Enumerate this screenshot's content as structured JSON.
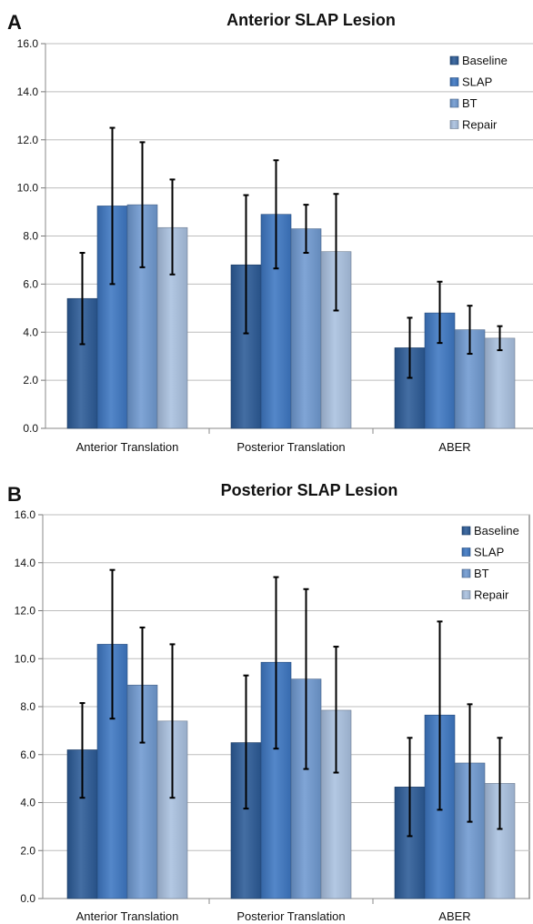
{
  "colors": {
    "Baseline": "#2b5a96",
    "SLAP": "#3d77c2",
    "BT": "#6f99d0",
    "Repair": "#a9c0df"
  },
  "chart_data": [
    {
      "type": "bar",
      "panel_label": "A",
      "title": "Anterior SLAP Lesion",
      "xlabel": "",
      "ylabel": "",
      "ylim": [
        0,
        16
      ],
      "yticks": [
        "0.0",
        "2.0",
        "4.0",
        "6.0",
        "8.0",
        "10.0",
        "12.0",
        "14.0",
        "16.0"
      ],
      "grid": true,
      "legend_position": "top-right",
      "categories": [
        "Anterior Translation",
        "Posterior Translation",
        "ABER"
      ],
      "series": [
        {
          "name": "Baseline",
          "values": [
            5.4,
            6.8,
            3.35
          ],
          "error": [
            [
              3.5,
              7.3
            ],
            [
              3.95,
              9.7
            ],
            [
              2.1,
              4.6
            ]
          ]
        },
        {
          "name": "SLAP",
          "values": [
            9.25,
            8.9,
            4.8
          ],
          "error": [
            [
              6.0,
              12.5
            ],
            [
              6.65,
              11.15
            ],
            [
              3.55,
              6.1
            ]
          ]
        },
        {
          "name": "BT",
          "values": [
            9.3,
            8.3,
            4.1
          ],
          "error": [
            [
              6.7,
              11.9
            ],
            [
              7.3,
              9.3
            ],
            [
              3.1,
              5.1
            ]
          ]
        },
        {
          "name": "Repair",
          "values": [
            8.35,
            7.35,
            3.75
          ],
          "error": [
            [
              6.4,
              10.35
            ],
            [
              4.9,
              9.75
            ],
            [
              3.25,
              4.25
            ]
          ]
        }
      ]
    },
    {
      "type": "bar",
      "panel_label": "B",
      "title": "Posterior SLAP Lesion",
      "xlabel": "",
      "ylabel": "",
      "ylim": [
        0,
        16
      ],
      "yticks": [
        "0.0",
        "2.0",
        "4.0",
        "6.0",
        "8.0",
        "10.0",
        "12.0",
        "14.0",
        "16.0"
      ],
      "grid": true,
      "legend_position": "top-right",
      "categories": [
        "Anterior Translation",
        "Posterior Translation",
        "ABER"
      ],
      "series": [
        {
          "name": "Baseline",
          "values": [
            6.2,
            6.5,
            4.65
          ],
          "error": [
            [
              4.2,
              8.15
            ],
            [
              3.75,
              9.3
            ],
            [
              2.6,
              6.7
            ]
          ]
        },
        {
          "name": "SLAP",
          "values": [
            10.6,
            9.85,
            7.65
          ],
          "error": [
            [
              7.5,
              13.7
            ],
            [
              6.25,
              13.4
            ],
            [
              3.7,
              11.55
            ]
          ]
        },
        {
          "name": "BT",
          "values": [
            8.9,
            9.15,
            5.65
          ],
          "error": [
            [
              6.5,
              11.3
            ],
            [
              5.4,
              12.9
            ],
            [
              3.2,
              8.1
            ]
          ]
        },
        {
          "name": "Repair",
          "values": [
            7.4,
            7.85,
            4.8
          ],
          "error": [
            [
              4.2,
              10.6
            ],
            [
              5.25,
              10.5
            ],
            [
              2.9,
              6.7
            ]
          ]
        }
      ]
    }
  ]
}
